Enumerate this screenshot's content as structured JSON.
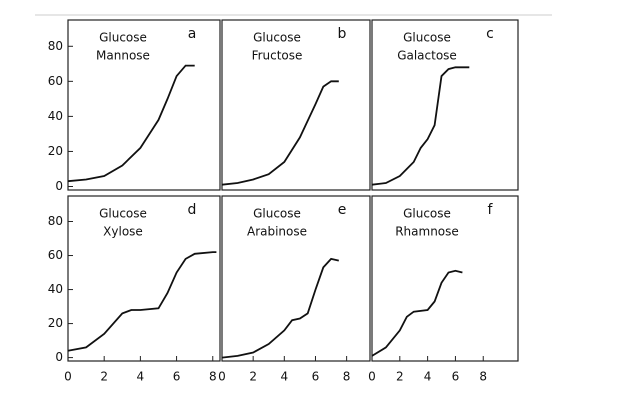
{
  "chart_data": [
    {
      "type": "line",
      "annotations": [
        "Glucose",
        "Mannose"
      ],
      "panel": "a",
      "x": [
        0,
        1,
        2,
        3,
        4,
        5,
        5.5,
        6,
        6.5,
        7
      ],
      "values": [
        3,
        4,
        6,
        12,
        22,
        38,
        50,
        63,
        69,
        69
      ],
      "xlim": [
        0,
        8.4
      ],
      "ylim": [
        -2,
        95
      ],
      "yticks": [
        0,
        20,
        40,
        60,
        80
      ],
      "color": "#111111"
    },
    {
      "type": "line",
      "annotations": [
        "Glucose",
        "Fructose"
      ],
      "panel": "b",
      "x": [
        0,
        1,
        2,
        3,
        4,
        5,
        6,
        6.5,
        7,
        7.5
      ],
      "values": [
        1,
        2,
        4,
        7,
        14,
        28,
        47,
        57,
        60,
        60
      ],
      "xlim": [
        0,
        9.5
      ],
      "ylim": [
        -2,
        95
      ],
      "color": "#111111"
    },
    {
      "type": "line",
      "annotations": [
        "Glucose",
        "Galactose"
      ],
      "panel": "c",
      "x": [
        0,
        1,
        2,
        3,
        3.5,
        4,
        4.5,
        5,
        5.5,
        6,
        6.5,
        7
      ],
      "values": [
        1,
        2,
        6,
        14,
        22,
        27,
        35,
        63,
        67,
        68,
        68,
        68
      ],
      "xlim": [
        0,
        10.5
      ],
      "ylim": [
        -2,
        95
      ],
      "color": "#111111"
    },
    {
      "type": "line",
      "annotations": [
        "Glucose",
        "Xylose"
      ],
      "panel": "d",
      "x": [
        0,
        1,
        2,
        3,
        3.5,
        4,
        5,
        5.5,
        6,
        6.5,
        7,
        8,
        8.2
      ],
      "values": [
        4,
        6,
        14,
        26,
        28,
        28,
        29,
        38,
        50,
        58,
        61,
        62,
        62
      ],
      "xlim": [
        0,
        8.4
      ],
      "ylim": [
        -2,
        95
      ],
      "xticks": [
        0,
        2,
        4,
        6,
        8
      ],
      "yticks": [
        0,
        20,
        40,
        60,
        80
      ],
      "color": "#111111"
    },
    {
      "type": "line",
      "annotations": [
        "Glucose",
        "Arabinose"
      ],
      "panel": "e",
      "x": [
        0,
        1,
        2,
        3,
        4,
        4.5,
        5,
        5.5,
        6,
        6.5,
        7,
        7.5
      ],
      "values": [
        0,
        1,
        3,
        8,
        16,
        22,
        23,
        26,
        40,
        53,
        58,
        57
      ],
      "xlim": [
        0,
        9.5
      ],
      "ylim": [
        -2,
        95
      ],
      "xticks": [
        0,
        2,
        4,
        6,
        8
      ],
      "color": "#111111"
    },
    {
      "type": "line",
      "annotations": [
        "Glucose",
        "Rhamnose"
      ],
      "panel": "f",
      "x": [
        0,
        1,
        2,
        2.5,
        3,
        4,
        4.5,
        5,
        5.5,
        6,
        6.5
      ],
      "values": [
        1,
        6,
        16,
        24,
        27,
        28,
        33,
        44,
        50,
        51,
        50
      ],
      "xlim": [
        0,
        10.5
      ],
      "ylim": [
        -2,
        95
      ],
      "xticks": [
        0,
        2,
        4,
        6,
        8
      ],
      "color": "#111111"
    }
  ]
}
